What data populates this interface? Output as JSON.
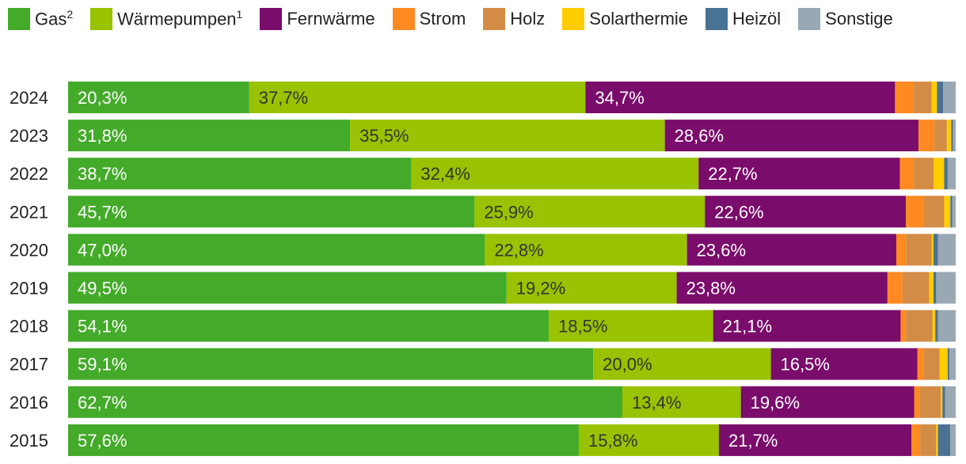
{
  "chart_data": {
    "type": "bar",
    "orientation": "horizontal",
    "stacked": true,
    "percent_stacked": true,
    "legend_position": "top",
    "categories": [
      "2024",
      "2023",
      "2022",
      "2021",
      "2020",
      "2019",
      "2018",
      "2017",
      "2016",
      "2015"
    ],
    "series": [
      {
        "name": "Gas",
        "sup": "2",
        "color": "#44aa2a",
        "values": [
          20.3,
          31.8,
          38.7,
          45.7,
          47.0,
          49.5,
          54.1,
          59.1,
          62.7,
          57.6
        ],
        "labels": [
          "20,3%",
          "31,8%",
          "38,7%",
          "45,7%",
          "47,0%",
          "49,5%",
          "54,1%",
          "59,1%",
          "62,7%",
          "57,6%"
        ],
        "label_color": "#ffffff"
      },
      {
        "name": "Wärmepumpen",
        "sup": "1",
        "color": "#99c200",
        "values": [
          37.7,
          35.5,
          32.4,
          25.9,
          22.8,
          19.2,
          18.5,
          20.0,
          13.4,
          15.8
        ],
        "labels": [
          "37,7%",
          "35,5%",
          "32,4%",
          "25,9%",
          "22,8%",
          "19,2%",
          "18,5%",
          "20,0%",
          "13,4%",
          "15,8%"
        ],
        "label_color": "#333333"
      },
      {
        "name": "Fernwärme",
        "sup": "",
        "color": "#7a0c6b",
        "values": [
          34.7,
          28.6,
          22.7,
          22.6,
          23.6,
          23.8,
          21.1,
          16.5,
          19.6,
          21.7
        ],
        "labels": [
          "34,7%",
          "28,6%",
          "22,7%",
          "22,6%",
          "23,6%",
          "23,8%",
          "21,1%",
          "16,5%",
          "19,6%",
          "21,7%"
        ],
        "label_color": "#ffffff"
      },
      {
        "name": "Strom",
        "sup": "",
        "color": "#ff8a21",
        "values": [
          2.1,
          1.8,
          1.6,
          2.0,
          1.1,
          1.7,
          0.6,
          0.7,
          0.6,
          1.0
        ],
        "labels": [],
        "label_color": "#ffffff"
      },
      {
        "name": "Holz",
        "sup": "",
        "color": "#d38c45",
        "values": [
          2.0,
          1.4,
          2.2,
          2.3,
          2.9,
          3.0,
          3.0,
          1.8,
          2.4,
          1.8
        ],
        "labels": [],
        "label_color": "#ffffff"
      },
      {
        "name": "Solarthermie",
        "sup": "",
        "color": "#ffcc00",
        "values": [
          0.6,
          0.5,
          1.2,
          0.7,
          0.2,
          0.5,
          0.3,
          0.9,
          0.2,
          0.2
        ],
        "labels": [],
        "label_color": "#333333"
      },
      {
        "name": "Heizöl",
        "sup": "",
        "color": "#4a7293",
        "values": [
          0.7,
          0.2,
          0.4,
          0.2,
          0.5,
          0.3,
          0.3,
          0.2,
          0.3,
          1.4
        ],
        "labels": [],
        "label_color": "#ffffff"
      },
      {
        "name": "Sonstige",
        "sup": "",
        "color": "#9aa8b3",
        "values": [
          1.4,
          0.3,
          0.9,
          0.4,
          2.0,
          2.2,
          2.0,
          0.7,
          1.2,
          0.6
        ],
        "labels": [],
        "label_color": "#333333"
      }
    ]
  }
}
